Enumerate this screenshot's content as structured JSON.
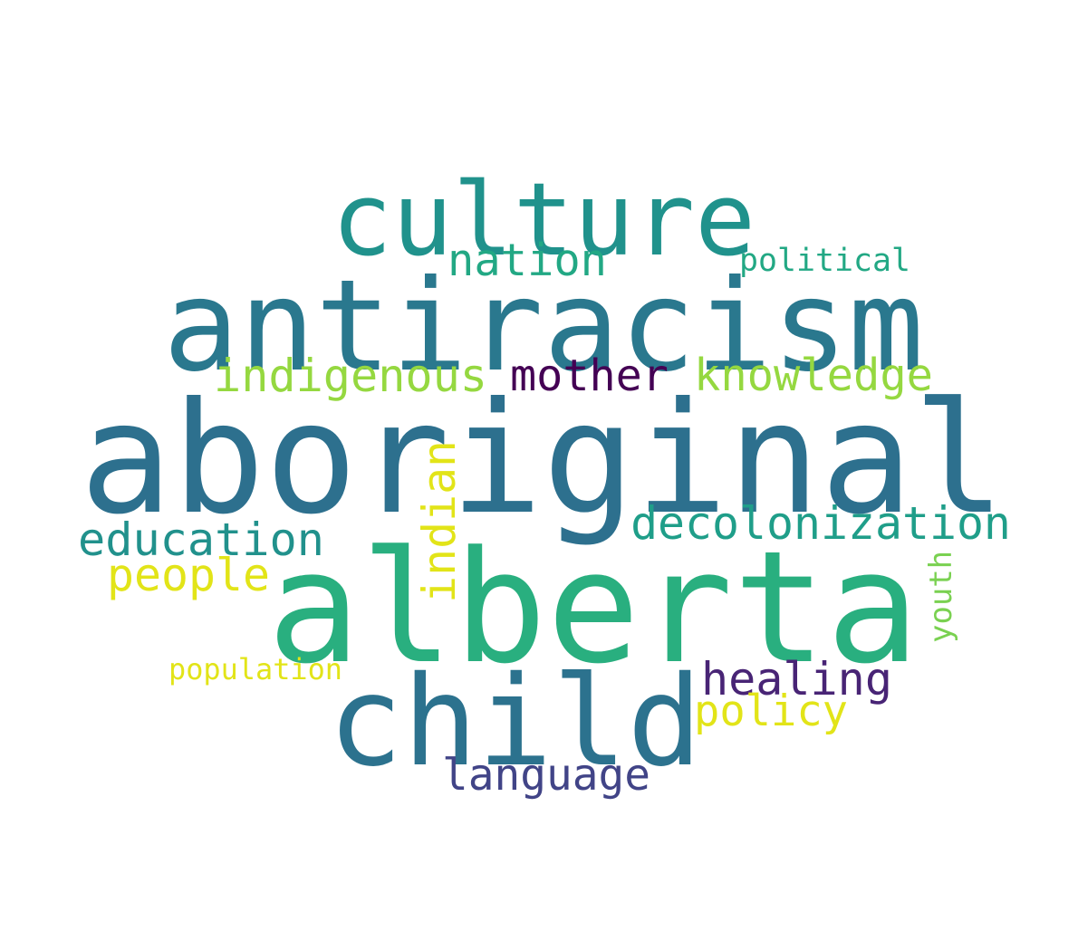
{
  "words": [
    {
      "text": "aboriginal",
      "color": "#2d708e"
    },
    {
      "text": "alberta",
      "color": "#29af7f"
    },
    {
      "text": "antiracism",
      "color": "#2a788e"
    },
    {
      "text": "culture",
      "color": "#20928c"
    },
    {
      "text": "child",
      "color": "#2c728e"
    },
    {
      "text": "decolonization",
      "color": "#1f9e89"
    },
    {
      "text": "education",
      "color": "#21918c"
    },
    {
      "text": "indigenous",
      "color": "#95d840"
    },
    {
      "text": "knowledge",
      "color": "#95d840"
    },
    {
      "text": "mother",
      "color": "#440154"
    },
    {
      "text": "nation",
      "color": "#22a884"
    },
    {
      "text": "political",
      "color": "#22a884"
    },
    {
      "text": "indian",
      "color": "#e2e418"
    },
    {
      "text": "people",
      "color": "#e2e418"
    },
    {
      "text": "healing",
      "color": "#482475"
    },
    {
      "text": "policy",
      "color": "#e2e418"
    },
    {
      "text": "language",
      "color": "#414487"
    },
    {
      "text": "youth",
      "color": "#7ad151"
    },
    {
      "text": "population",
      "color": "#e2e418"
    }
  ]
}
